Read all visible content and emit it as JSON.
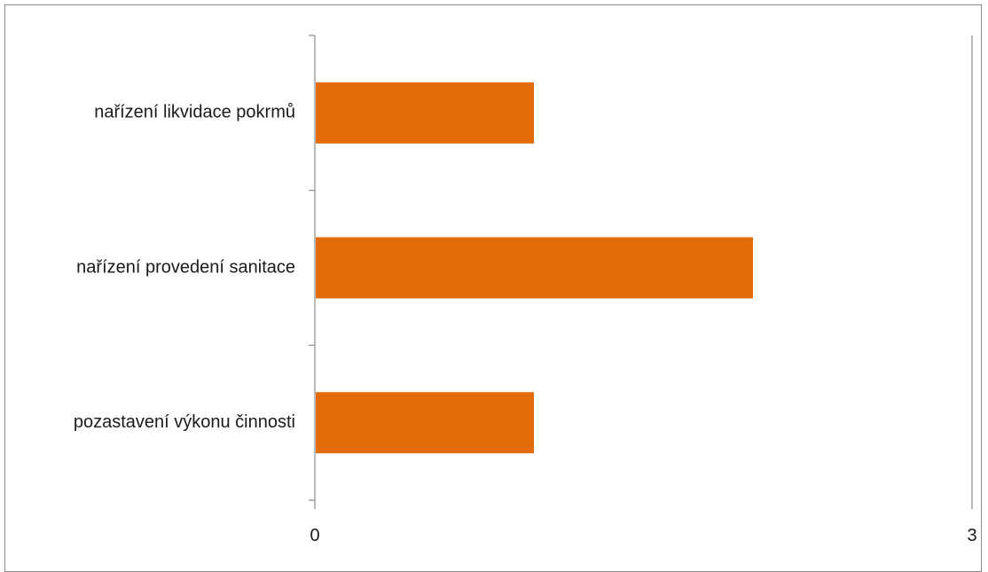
{
  "chart_data": {
    "type": "bar",
    "orientation": "horizontal",
    "categories": [
      "nařízení likvidace pokrmů",
      "nařízení provedení sanitace",
      "pozastavení výkonu činnosti"
    ],
    "values": [
      1,
      2,
      1
    ],
    "xlim": [
      0,
      3
    ],
    "x_tick_labels": [
      "0",
      "3"
    ],
    "grid": false,
    "legend": "none",
    "bar_color": "#E36C0A"
  }
}
